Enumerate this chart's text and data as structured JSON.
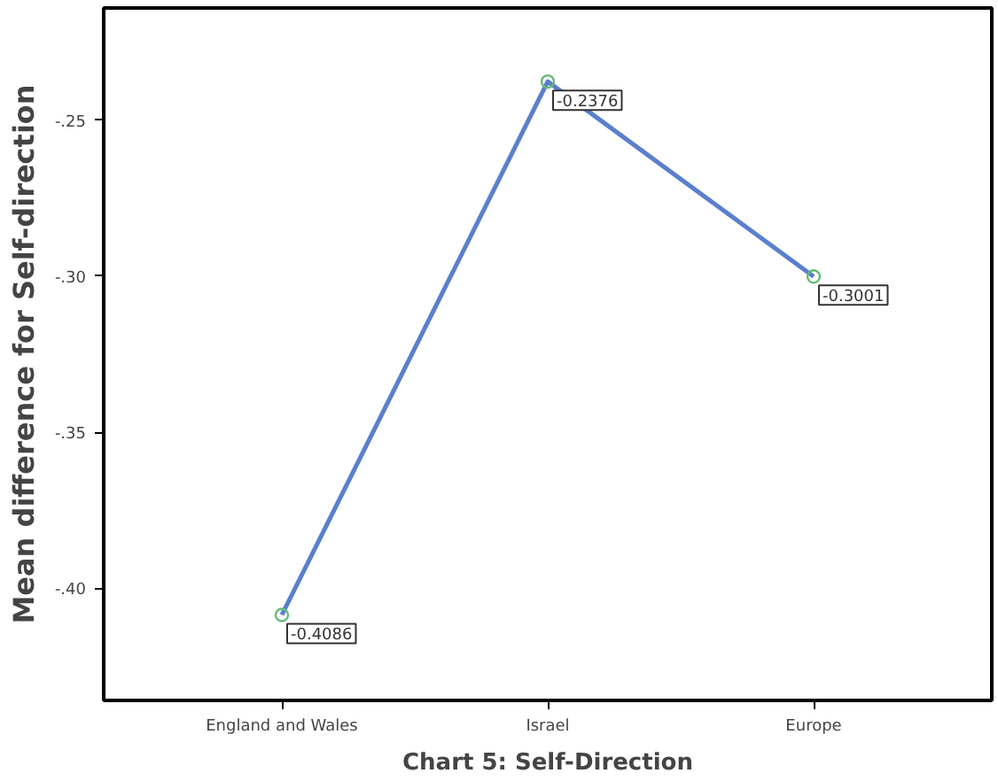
{
  "chart_data": {
    "type": "line",
    "xlabel": "Chart 5: Self-Direction",
    "ylabel": "Mean difference for Self-direction",
    "categories": [
      "England and Wales",
      "Israel",
      "Europe"
    ],
    "series": [
      {
        "color": "#5b7fce",
        "values": [
          -0.4086,
          -0.2376,
          -0.3001
        ]
      }
    ],
    "ylim": [
      -0.436,
      -0.214
    ],
    "yticks": [
      {
        "value": -0.4,
        "label": "-.40"
      },
      {
        "value": -0.35,
        "label": "-.35"
      },
      {
        "value": -0.3,
        "label": "-.30"
      },
      {
        "value": -0.25,
        "label": "-.25"
      }
    ],
    "data_labels": true,
    "marker": "circle"
  }
}
